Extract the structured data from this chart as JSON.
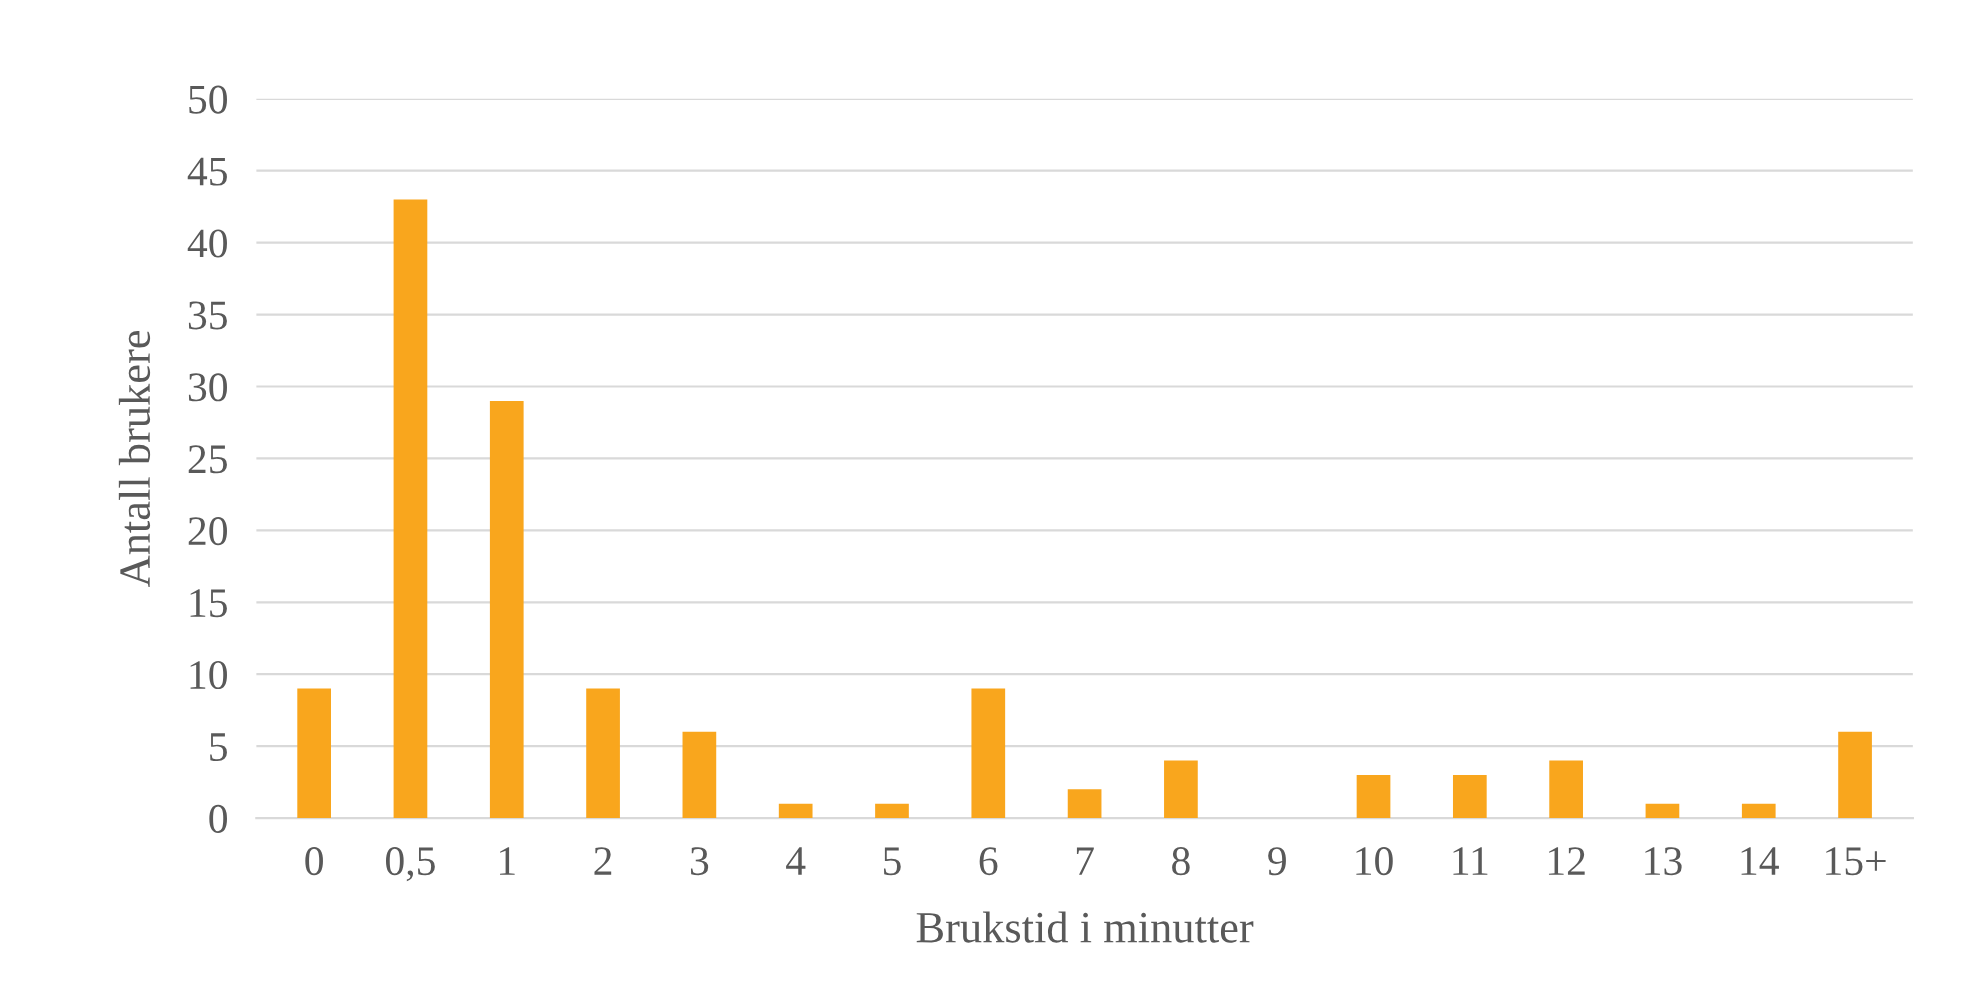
{
  "chart_data": {
    "type": "bar",
    "xlabel": "Brukstid i minutter",
    "ylabel": "Antall brukere",
    "categories": [
      "0",
      "0,5",
      "1",
      "2",
      "3",
      "4",
      "5",
      "6",
      "7",
      "8",
      "9",
      "10",
      "11",
      "12",
      "13",
      "14",
      "15+"
    ],
    "values": [
      9,
      43,
      29,
      9,
      6,
      1,
      1,
      9,
      2,
      4,
      0,
      3,
      3,
      4,
      1,
      1,
      6
    ],
    "color": "#f9a61d",
    "ylim": [
      0,
      50
    ],
    "yticks": [
      0,
      5,
      10,
      15,
      20,
      25,
      30,
      35,
      40,
      45,
      50
    ],
    "grid": "y",
    "legend": false
  }
}
